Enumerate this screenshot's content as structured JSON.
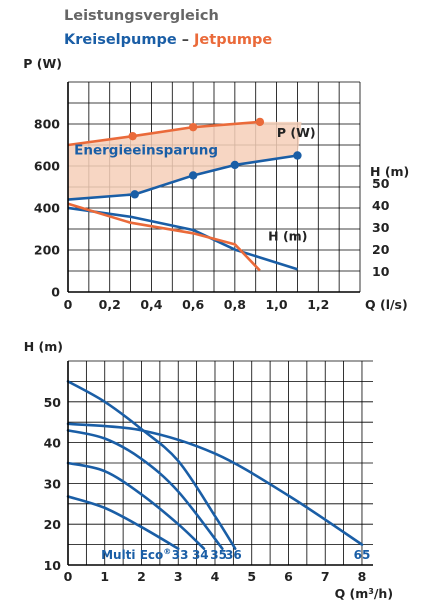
{
  "header": {
    "title": "Leistungsvergleich",
    "subtitle_blue": "Kreiselpumpe",
    "subtitle_sep": "–",
    "subtitle_orange": "Jetpumpe"
  },
  "colors": {
    "blue": "#1a5ea6",
    "orange": "#ea6a3a",
    "fill": "#f6cfb9",
    "grid": "#000000"
  },
  "chart_data": [
    {
      "type": "line",
      "title": "Leistungsvergleich",
      "xlabel": "Q (l/s)",
      "ylabel": "P (W)",
      "y2label": "H (m)",
      "x_ticks": [
        "0",
        "0,2",
        "0,4",
        "0,6",
        "0,8",
        "1,0",
        "1,2"
      ],
      "y_ticks": [
        "0",
        "200",
        "400",
        "600",
        "800"
      ],
      "y2_ticks": [
        "10",
        "20",
        "30",
        "40",
        "50"
      ],
      "xlim": [
        0,
        1.4
      ],
      "ylim": [
        0,
        1000
      ],
      "y2_scale": {
        "value_10_at_P": 100,
        "value_50_at_P": 520
      },
      "grid": true,
      "fill_label": "Energieeinsparung",
      "series": [
        {
          "name": "P (W)",
          "pump": "Jetpumpe",
          "color": "orange",
          "axis": "P",
          "x": [
            0,
            0.31,
            0.6,
            0.92
          ],
          "y": [
            700,
            742,
            785,
            810
          ],
          "markers": [
            0.31,
            0.6,
            0.92
          ]
        },
        {
          "name": "P (W)",
          "pump": "Kreiselpumpe",
          "color": "blue",
          "axis": "P",
          "x": [
            0,
            0.32,
            0.6,
            0.8,
            1.1
          ],
          "y": [
            440,
            465,
            555,
            605,
            650
          ],
          "markers": [
            0.32,
            0.6,
            0.8,
            1.1
          ]
        },
        {
          "name": "H (m)",
          "pump": "Kreiselpumpe",
          "color": "blue",
          "axis": "H",
          "x": [
            0,
            0.3,
            0.6,
            0.8,
            1.1
          ],
          "y": [
            38.6,
            34.6,
            28.6,
            19.7,
            10.8
          ]
        },
        {
          "name": "H (m)",
          "pump": "Jetpumpe",
          "color": "orange",
          "axis": "H",
          "x": [
            0,
            0.3,
            0.6,
            0.8,
            0.92
          ],
          "y": [
            40.5,
            31.9,
            27.1,
            22.1,
            10.2
          ]
        }
      ],
      "labels": {
        "p_series": "P (W)",
        "h_series": "H (m)"
      }
    },
    {
      "type": "line",
      "xlabel": "Q (m³/h)",
      "xlabel_main": "Q (m",
      "xlabel_sup": "3",
      "xlabel_tail": "/h)",
      "ylabel": "H (m)",
      "x_ticks": [
        "0",
        "1",
        "2",
        "3",
        "4",
        "5",
        "6",
        "7",
        "8"
      ],
      "y_ticks": [
        "10",
        "20",
        "30",
        "40",
        "50"
      ],
      "xlim": [
        0,
        8.3
      ],
      "ylim": [
        10,
        60
      ],
      "grid": true,
      "model_label": "Multi Eco",
      "model_reg": "®",
      "series": [
        {
          "name": "33",
          "x": [
            0,
            1,
            2,
            3
          ],
          "y": [
            26.8,
            24,
            19.3,
            14
          ]
        },
        {
          "name": "34",
          "x": [
            0,
            1,
            2,
            3,
            3.7
          ],
          "y": [
            35,
            33,
            27.3,
            20,
            14
          ]
        },
        {
          "name": "35",
          "x": [
            0,
            1,
            2,
            3,
            4.2
          ],
          "y": [
            43,
            41,
            36,
            28,
            14
          ]
        },
        {
          "name": "36",
          "x": [
            0,
            1,
            2,
            3,
            4,
            4.55
          ],
          "y": [
            55,
            50,
            43.3,
            35.5,
            22,
            14
          ]
        },
        {
          "name": "65",
          "x": [
            0,
            2,
            4,
            6,
            8
          ],
          "y": [
            44.6,
            43,
            37.3,
            27,
            15
          ]
        }
      ]
    }
  ]
}
